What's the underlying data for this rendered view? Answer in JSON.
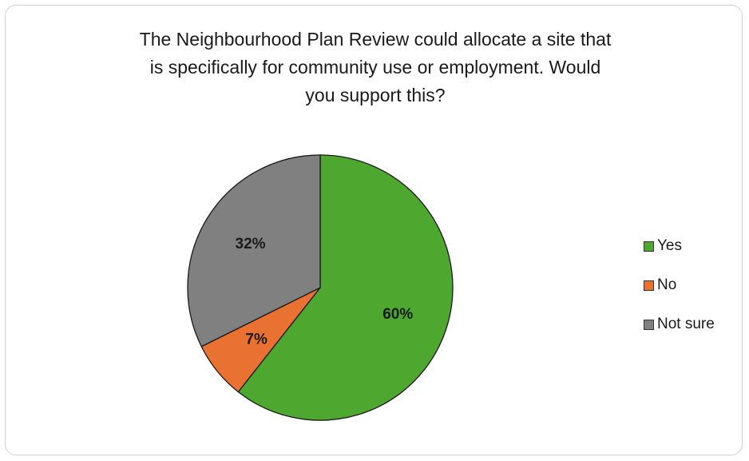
{
  "chart_data": {
    "type": "pie",
    "title_lines": [
      "The Neighbourhood Plan Review could allocate a site that",
      "is specifically for community use or employment. Would",
      "you support this?"
    ],
    "slices": [
      {
        "label": "Yes",
        "value": 60,
        "display": "60%",
        "color": "#4ea72e"
      },
      {
        "label": "No",
        "value": 7,
        "display": "7%",
        "color": "#e97132"
      },
      {
        "label": "Not sure",
        "value": 32,
        "display": "32%",
        "color": "#808080"
      }
    ],
    "legend_position": "right"
  }
}
